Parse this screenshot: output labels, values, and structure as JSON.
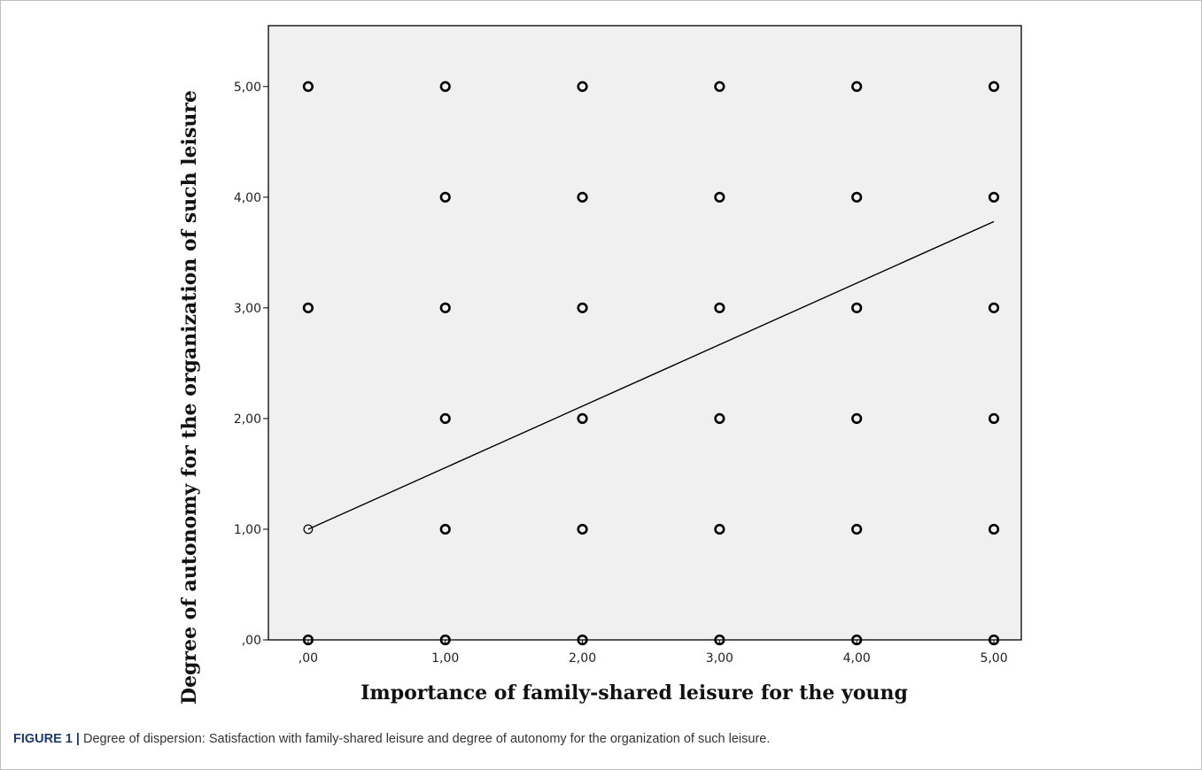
{
  "caption": {
    "label": "FIGURE 1 |",
    "text": "Degree of dispersion: Satisfaction with family-shared leisure and degree of autonomy for the organization of such leisure."
  },
  "chart_data": {
    "type": "scatter",
    "xlabel": "Importance of family-shared leisure for the young",
    "ylabel": "Degree of autonomy for the organization of such leisure",
    "xlim": [
      -0.29,
      5.2
    ],
    "ylim": [
      0,
      5.55
    ],
    "xticks": [
      0,
      1,
      2,
      3,
      4,
      5
    ],
    "yticks": [
      0,
      1,
      2,
      3,
      4,
      5
    ],
    "xtick_labels": [
      ",00",
      "1,00",
      "2,00",
      "3,00",
      "4,00",
      "5,00"
    ],
    "ytick_labels": [
      ",00",
      "1,00",
      "2,00",
      "3,00",
      "4,00",
      "5,00"
    ],
    "grid": false,
    "plot_background": "#f0f0f0",
    "points": [
      {
        "x": 0,
        "y": 0
      },
      {
        "x": 0,
        "y": 1
      },
      {
        "x": 0,
        "y": 3
      },
      {
        "x": 0,
        "y": 5
      },
      {
        "x": 1,
        "y": 0
      },
      {
        "x": 1,
        "y": 1
      },
      {
        "x": 1,
        "y": 2
      },
      {
        "x": 1,
        "y": 3
      },
      {
        "x": 1,
        "y": 4
      },
      {
        "x": 1,
        "y": 5
      },
      {
        "x": 2,
        "y": 0
      },
      {
        "x": 2,
        "y": 1
      },
      {
        "x": 2,
        "y": 2
      },
      {
        "x": 2,
        "y": 3
      },
      {
        "x": 2,
        "y": 4
      },
      {
        "x": 2,
        "y": 5
      },
      {
        "x": 3,
        "y": 0
      },
      {
        "x": 3,
        "y": 1
      },
      {
        "x": 3,
        "y": 2
      },
      {
        "x": 3,
        "y": 3
      },
      {
        "x": 3,
        "y": 4
      },
      {
        "x": 3,
        "y": 5
      },
      {
        "x": 4,
        "y": 0
      },
      {
        "x": 4,
        "y": 1
      },
      {
        "x": 4,
        "y": 2
      },
      {
        "x": 4,
        "y": 3
      },
      {
        "x": 4,
        "y": 4
      },
      {
        "x": 4,
        "y": 5
      },
      {
        "x": 5,
        "y": 0
      },
      {
        "x": 5,
        "y": 1
      },
      {
        "x": 5,
        "y": 2
      },
      {
        "x": 5,
        "y": 3
      },
      {
        "x": 5,
        "y": 4
      },
      {
        "x": 5,
        "y": 5
      }
    ],
    "fit_line": {
      "x": [
        0,
        5
      ],
      "y": [
        1.0,
        3.78
      ]
    }
  }
}
